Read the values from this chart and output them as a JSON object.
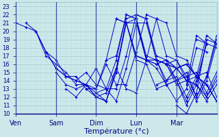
{
  "xlabel": "Température (°c)",
  "xlim": [
    0,
    120
  ],
  "ylim": [
    10,
    23.5
  ],
  "yticks": [
    10,
    11,
    12,
    13,
    14,
    15,
    16,
    17,
    18,
    19,
    20,
    21,
    22,
    23
  ],
  "day_ticks": [
    0,
    24,
    48,
    72,
    96
  ],
  "day_labels": [
    "Ven",
    "Sam",
    "Dim",
    "Lun",
    "Mar"
  ],
  "background_color": "#cce8ea",
  "grid_color_major": "#a0ccce",
  "grid_color_minor": "#b8dcde",
  "line_color": "#0000cc",
  "series": [
    {
      "start": 0,
      "data": [
        21.0,
        20.5,
        20.0,
        17.5,
        15.5,
        14.5,
        14.0,
        13.5,
        13.0,
        16.5,
        21.5,
        21.0,
        16.5,
        16.0,
        13.0,
        13.5,
        11.5,
        13.0,
        18.0,
        17.5
      ]
    },
    {
      "start": 6,
      "data": [
        21.0,
        20.0,
        17.5,
        16.5,
        14.5,
        14.0,
        15.0,
        13.5,
        13.0,
        16.5,
        22.0,
        21.5,
        16.5,
        16.5,
        13.5,
        14.0,
        11.0,
        13.5,
        18.5
      ]
    },
    {
      "start": 12,
      "data": [
        20.0,
        17.0,
        16.0,
        15.0,
        13.5,
        13.5,
        15.5,
        13.0,
        13.0,
        17.0,
        22.0,
        21.5,
        16.5,
        16.0,
        13.5,
        14.0,
        11.5,
        14.0,
        18.5
      ]
    },
    {
      "start": 18,
      "data": [
        17.5,
        15.5,
        14.5,
        14.5,
        13.0,
        13.0,
        16.0,
        13.5,
        13.5,
        17.5,
        22.0,
        21.5,
        17.0,
        16.5,
        14.0,
        14.5,
        12.0,
        14.5,
        19.0,
        18.5
      ]
    },
    {
      "start": 24,
      "data": [
        15.0,
        13.5,
        13.0,
        13.5,
        12.0,
        12.5,
        15.5,
        13.0,
        12.5,
        16.5,
        21.5,
        21.0,
        17.0,
        16.5,
        14.5,
        15.0,
        12.0,
        15.0,
        19.5,
        18.5
      ]
    },
    {
      "start": 30,
      "data": [
        13.0,
        12.0,
        13.5,
        12.0,
        11.5,
        15.0,
        21.0,
        21.5,
        16.5,
        16.5,
        14.0,
        14.5,
        12.0,
        14.5,
        19.5,
        18.5
      ]
    },
    {
      "start": 36,
      "data": [
        14.0,
        13.5,
        12.5,
        13.0,
        11.5,
        15.5,
        21.0,
        21.0,
        16.5,
        16.0,
        14.0,
        15.0,
        12.0,
        14.5,
        19.0,
        18.5
      ]
    },
    {
      "start": 42,
      "data": [
        13.0,
        12.0,
        11.5,
        15.5,
        21.0,
        21.0,
        16.5,
        15.5,
        13.5,
        14.0,
        11.5,
        14.0,
        18.5,
        18.0
      ]
    },
    {
      "start": 48,
      "data": [
        12.5,
        11.5,
        15.0,
        21.5,
        22.0,
        21.5,
        17.0,
        16.5,
        14.0,
        14.5,
        12.0,
        14.5,
        19.5,
        18.5
      ]
    },
    {
      "start": 54,
      "data": [
        16.5,
        17.0,
        22.0,
        21.5,
        17.0,
        16.5,
        16.0,
        16.5,
        14.5,
        15.0,
        12.5,
        15.0,
        19.5,
        18.5
      ]
    },
    {
      "start": 60,
      "data": [
        21.5,
        21.0,
        17.0,
        16.5,
        16.5,
        16.0,
        15.5,
        16.0,
        14.5,
        13.5,
        11.5,
        13.0,
        18.5,
        17.5
      ]
    },
    {
      "start": 66,
      "data": [
        21.0,
        17.0,
        16.5,
        16.5,
        16.0,
        15.5,
        16.0,
        14.5,
        13.5,
        11.5,
        13.5,
        18.5,
        18.0
      ]
    },
    {
      "start": 72,
      "data": [
        17.0,
        16.5,
        16.0,
        16.5,
        15.5,
        16.0,
        14.5,
        13.5,
        11.5,
        13.5,
        18.5,
        18.0
      ]
    },
    {
      "start": 78,
      "data": [
        16.5,
        16.0,
        16.5,
        15.5,
        16.0,
        14.5,
        13.5,
        11.5,
        13.5,
        18.0,
        17.5
      ]
    },
    {
      "start": 84,
      "data": [
        13.5,
        14.0,
        15.5,
        14.0,
        13.5,
        11.5,
        13.5,
        18.5,
        18.0
      ]
    },
    {
      "start": 90,
      "data": [
        14.0,
        15.5,
        14.0,
        13.5,
        12.0,
        14.0,
        18.5,
        18.5
      ]
    },
    {
      "start": 96,
      "data": [
        11.0,
        10.0,
        12.5,
        19.0,
        18.5
      ]
    },
    {
      "start": 102,
      "data": [
        13.5,
        19.5,
        18.5
      ]
    },
    {
      "start": 108,
      "data": [
        19.0,
        18.5
      ]
    }
  ]
}
